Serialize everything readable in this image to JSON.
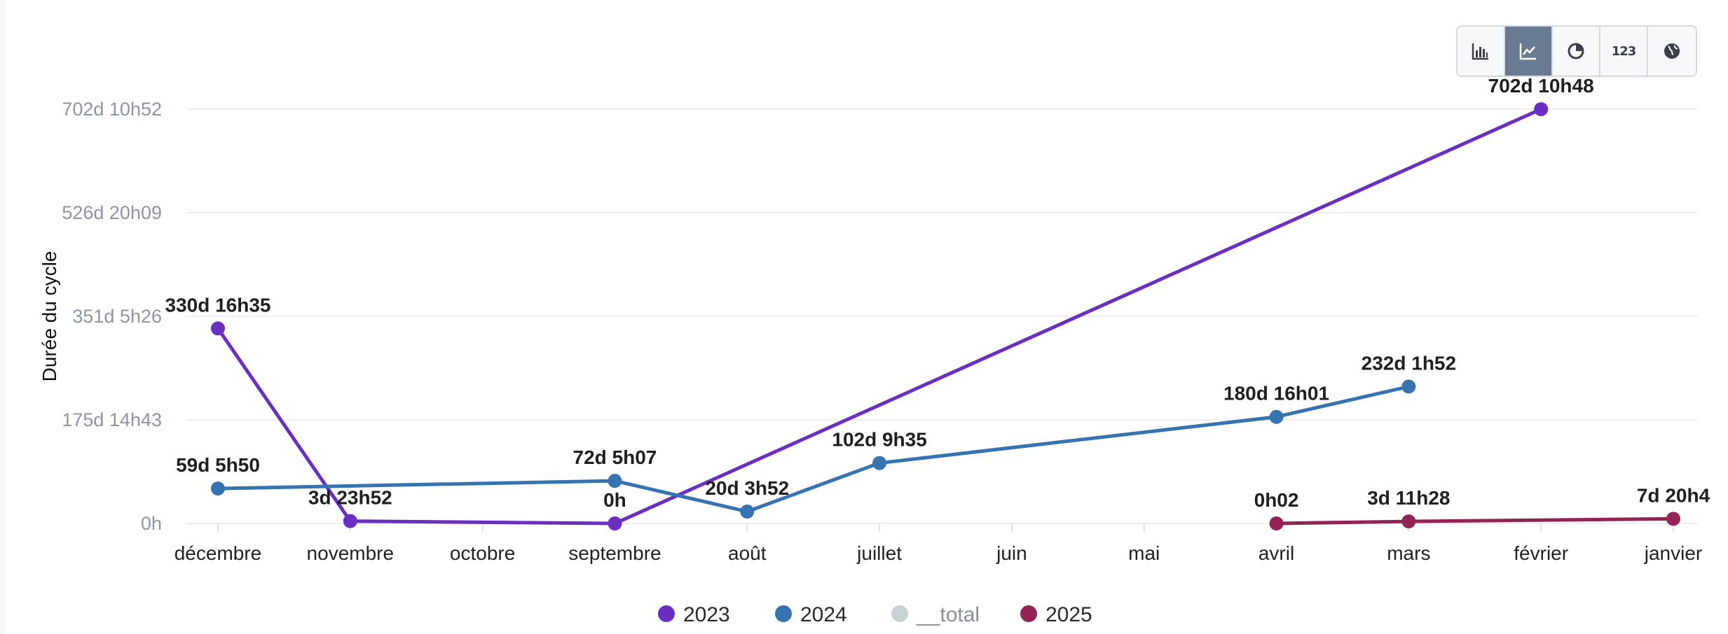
{
  "toolbar": {
    "buttons": [
      {
        "name": "bar-chart",
        "icon": "bar-chart-icon",
        "active": false,
        "text": ""
      },
      {
        "name": "line-chart",
        "icon": "line-chart-icon",
        "active": true,
        "text": ""
      },
      {
        "name": "pie-chart",
        "icon": "pie-chart-icon",
        "active": false,
        "text": ""
      },
      {
        "name": "number",
        "icon": "number-icon",
        "active": false,
        "text": "123"
      },
      {
        "name": "globe",
        "icon": "globe-icon",
        "active": false,
        "text": ""
      }
    ]
  },
  "chart_data": {
    "type": "line",
    "title": "",
    "xlabel": "",
    "ylabel": "Durée du cycle",
    "categories": [
      "décembre",
      "novembre",
      "octobre",
      "septembre",
      "août",
      "juillet",
      "juin",
      "mai",
      "avril",
      "mars",
      "février",
      "janvier"
    ],
    "y_ticks": [
      {
        "value": 0,
        "label": "0h"
      },
      {
        "value": 175.6,
        "label": "175d 14h43"
      },
      {
        "value": 351.2,
        "label": "351d 5h26"
      },
      {
        "value": 526.8,
        "label": "526d 20h09"
      },
      {
        "value": 702.45,
        "label": "702d 10h52"
      }
    ],
    "ylim": [
      0,
      702.45
    ],
    "grid": true,
    "legend_position": "bottom",
    "series": [
      {
        "name": "2023",
        "color": "#6a2fc0",
        "points": [
          {
            "category": "décembre",
            "value": 330.69,
            "label": "330d 16h35"
          },
          {
            "category": "novembre",
            "value": 3.99,
            "label": "3d 23h52"
          },
          {
            "category": "septembre",
            "value": 0,
            "label": "0h"
          },
          {
            "category": "février",
            "value": 702.45,
            "label": "702d 10h48"
          }
        ]
      },
      {
        "name": "2024",
        "color": "#3573b1",
        "points": [
          {
            "category": "décembre",
            "value": 59.24,
            "label": "59d 5h50"
          },
          {
            "category": "septembre",
            "value": 72.21,
            "label": "72d 5h07"
          },
          {
            "category": "août",
            "value": 20.16,
            "label": "20d 3h52"
          },
          {
            "category": "juillet",
            "value": 102.4,
            "label": "102d 9h35"
          },
          {
            "category": "avril",
            "value": 180.67,
            "label": "180d 16h01"
          },
          {
            "category": "mars",
            "value": 232.08,
            "label": "232d 1h52"
          }
        ]
      },
      {
        "name": "__total",
        "color": "#c7d3d3",
        "hidden": true,
        "points": []
      },
      {
        "name": "2025",
        "color": "#922556",
        "points": [
          {
            "category": "avril",
            "value": 0.0014,
            "label": "0h02"
          },
          {
            "category": "mars",
            "value": 3.48,
            "label": "3d 11h28"
          },
          {
            "category": "janvier",
            "value": 7.86,
            "label": "7d 20h4"
          }
        ]
      }
    ]
  }
}
